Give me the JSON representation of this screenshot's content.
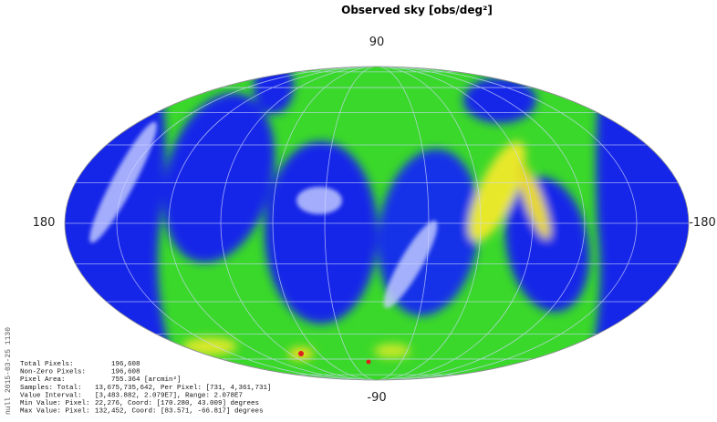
{
  "title": "Observed sky [obs/deg²]",
  "axis_labels": {
    "top": "90",
    "left": "180",
    "right": "-180",
    "bottom": "-90"
  },
  "side_note": "null 2015-03-25 1130",
  "stats": [
    [
      "Total Pixels:",
      "196,608"
    ],
    [
      "Non-Zero Pixels:",
      "196,608"
    ],
    [
      "Pixel Area:",
      "755.364 [arcmin²]"
    ],
    [
      "Samples: Total:",
      "13,675,735,642, Per Pixel: [731, 4,361,731]"
    ],
    [
      "Value Interval:",
      "[3,483.882, 2.079E7], Range: 2.078E7"
    ],
    [
      "Min Value: Pixel:",
      "22,276, Coord: [170.280, 43.009] degrees"
    ],
    [
      "Max Value: Pixel:",
      "132,452, Coord: [83.571, -66.817] degrees"
    ]
  ]
}
